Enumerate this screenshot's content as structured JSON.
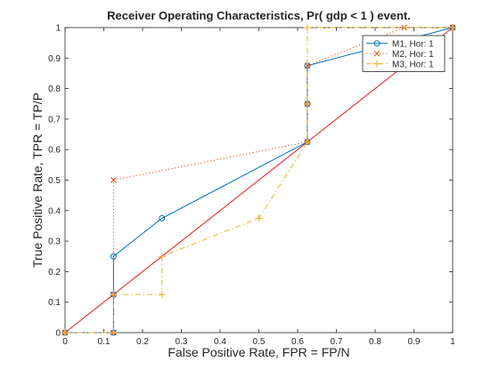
{
  "chart_data": {
    "type": "line",
    "title": "Receiver Operating Characteristics, Pr( gdp < 1 ) event.",
    "xlabel": "False Positive Rate, FPR = FP/N",
    "ylabel": "True Positive Rate, TPR = TP/P",
    "xlim": [
      0,
      1
    ],
    "ylim": [
      0,
      1
    ],
    "xticks": [
      "0",
      "0.1",
      "0.2",
      "0.3",
      "0.4",
      "0.5",
      "0.6",
      "0.7",
      "0.8",
      "0.9",
      "1"
    ],
    "yticks": [
      "0",
      "0.1",
      "0.2",
      "0.3",
      "0.4",
      "0.5",
      "0.6",
      "0.7",
      "0.8",
      "0.9",
      "1"
    ],
    "grid": false,
    "legend_position": "top-right",
    "diagonal": {
      "x": [
        0,
        1
      ],
      "y": [
        0,
        1
      ],
      "color": "#e8191c"
    },
    "series": [
      {
        "name": "M1, Hor: 1",
        "color": "#0072bd",
        "line": "solid",
        "marker": "circle",
        "x": [
          0,
          0.125,
          0.125,
          0.125,
          0.25,
          0.625,
          0.625,
          0.625,
          1
        ],
        "y": [
          0,
          0,
          0.125,
          0.25,
          0.375,
          0.625,
          0.75,
          0.875,
          1
        ]
      },
      {
        "name": "M2, Hor: 1",
        "color": "#d95319",
        "line": "dotted",
        "marker": "x",
        "x": [
          0,
          0.125,
          0.125,
          0.125,
          0.625,
          0.625,
          0.625,
          0.875,
          1
        ],
        "y": [
          0,
          0,
          0.125,
          0.5,
          0.625,
          0.75,
          0.875,
          1,
          1
        ]
      },
      {
        "name": "M3, Hor: 1",
        "color": "#edb120",
        "line": "dashdot",
        "marker": "plus",
        "x": [
          0,
          0.125,
          0.125,
          0.25,
          0.25,
          0.5,
          0.625,
          0.625,
          0.625,
          1
        ],
        "y": [
          0,
          0,
          0.125,
          0.125,
          0.25,
          0.375,
          0.625,
          0.75,
          1,
          1
        ]
      }
    ]
  }
}
